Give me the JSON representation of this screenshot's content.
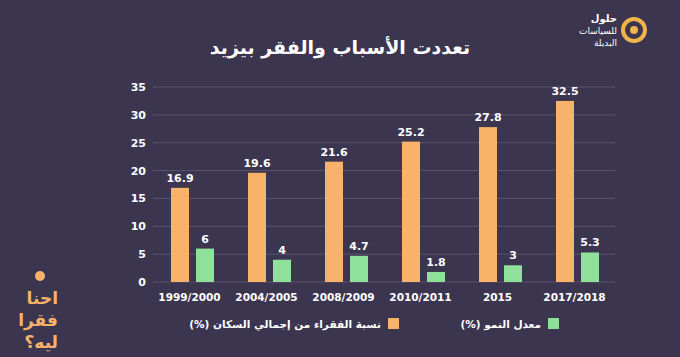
{
  "chart_data": {
    "type": "bar",
    "title": "تعددت الأسباب والفقر بيزيد",
    "annotations": [
      "حلول",
      "للسياسات",
      "البديلة",
      "احنا",
      "فقرا",
      "ليه؟"
    ],
    "categories": [
      "1999/2000",
      "2004/2005",
      "2008/2009",
      "2010/2011",
      "2015",
      "2017/2018"
    ],
    "series": [
      {
        "name": "نسبة الفقراء من إجمالي السكان (%)",
        "color": "#f8b26a",
        "values": [
          16.9,
          19.6,
          21.6,
          25.2,
          27.8,
          32.5
        ]
      },
      {
        "name": "معدل النمو (%)",
        "color": "#8ee09a",
        "values": [
          6,
          4,
          4.7,
          1.8,
          3,
          5.3
        ]
      }
    ],
    "ylim": [
      0,
      35
    ],
    "yticks": [
      0,
      5,
      10,
      15,
      20,
      25,
      30,
      35
    ],
    "grid": true,
    "data_labels": true,
    "legend": "bottom"
  }
}
